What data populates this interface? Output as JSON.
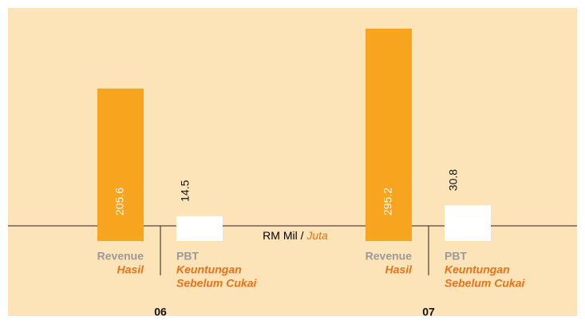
{
  "chart_data": {
    "type": "bar",
    "unit": "RM Mil",
    "unit_separator": "/",
    "unit_translation": "Juta",
    "categories": [
      "06",
      "07"
    ],
    "series": [
      {
        "name": "Revenue",
        "translation": [
          "Hasil"
        ],
        "color": "#f7a51e",
        "values": [
          205.6,
          295.2
        ]
      },
      {
        "name": "PBT",
        "translation": [
          "Keuntungan",
          "Sebelum Cukai"
        ],
        "color": "#ffffff",
        "values": [
          14.5,
          30.8
        ]
      }
    ]
  }
}
